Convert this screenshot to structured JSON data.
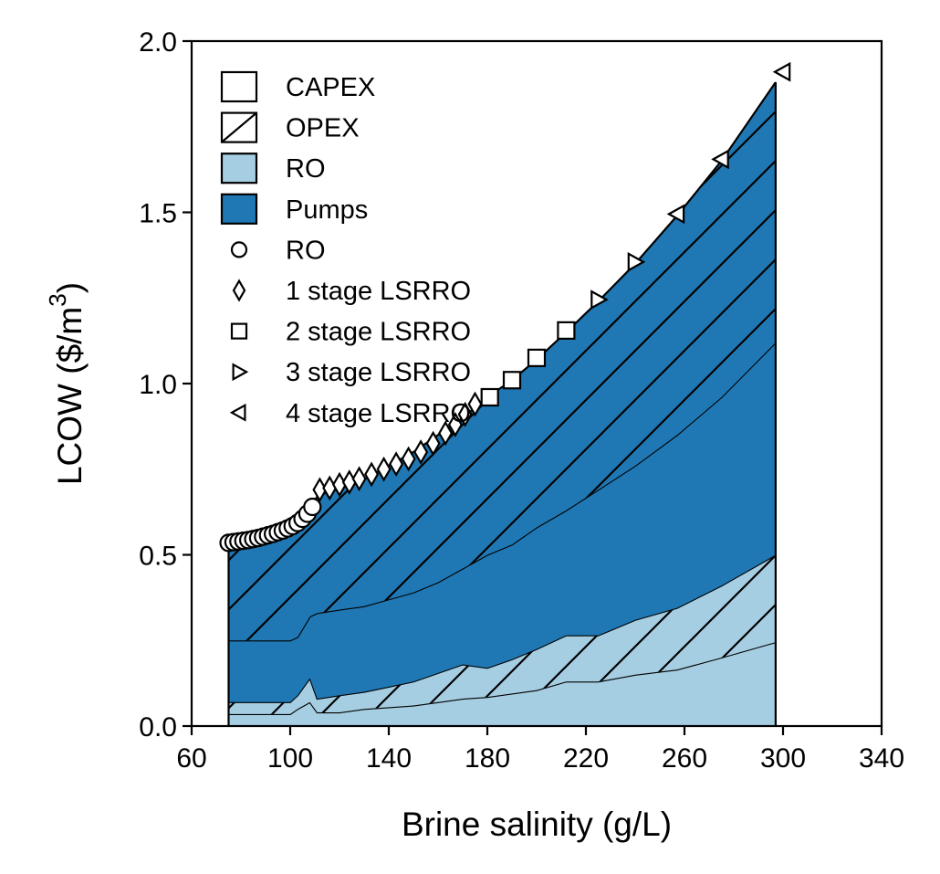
{
  "chart_data": {
    "type": "area",
    "title": "",
    "xlabel": "Brine salinity (g/L)",
    "ylabel_main": "LCOW ($/m",
    "ylabel_sup": "3",
    "ylabel_close": ")",
    "xlim": [
      60,
      340
    ],
    "ylim": [
      0,
      2.0
    ],
    "xticks": [
      60,
      100,
      140,
      180,
      220,
      260,
      300,
      340
    ],
    "yticks": [
      0.0,
      0.5,
      1.0,
      1.5,
      2.0
    ],
    "xtick_labels": [
      "60",
      "100",
      "140",
      "180",
      "220",
      "260",
      "300",
      "340"
    ],
    "ytick_labels": [
      "0.0",
      "0.5",
      "1.0",
      "1.5",
      "2.0"
    ],
    "grid": false,
    "legend_placement": "top-left",
    "colors": {
      "ro": "#a6cee3",
      "pumps": "#1f78b4",
      "edge": "#000000",
      "marker_fill": "#ffffff"
    },
    "boundary_x": [
      75,
      100,
      103,
      108,
      111,
      120,
      130,
      140,
      150,
      160,
      170,
      180,
      190,
      200,
      212,
      225,
      240,
      257,
      275,
      297
    ],
    "layers": [
      {
        "name": "RO CAPEX",
        "component": "RO",
        "hatch": false,
        "values": [
          0.035,
          0.035,
          0.05,
          0.07,
          0.04,
          0.04,
          0.05,
          0.055,
          0.06,
          0.07,
          0.08,
          0.085,
          0.095,
          0.105,
          0.13,
          0.13,
          0.15,
          0.165,
          0.2,
          0.245
        ]
      },
      {
        "name": "RO OPEX",
        "component": "RO",
        "hatch": true,
        "values": [
          0.07,
          0.07,
          0.09,
          0.14,
          0.08,
          0.09,
          0.1,
          0.115,
          0.13,
          0.155,
          0.18,
          0.17,
          0.195,
          0.225,
          0.265,
          0.265,
          0.31,
          0.345,
          0.41,
          0.5
        ]
      },
      {
        "name": "Pumps CAPEX",
        "component": "Pumps",
        "hatch": false,
        "values": [
          0.25,
          0.25,
          0.26,
          0.32,
          0.33,
          0.34,
          0.35,
          0.37,
          0.39,
          0.42,
          0.46,
          0.5,
          0.53,
          0.58,
          0.63,
          0.69,
          0.76,
          0.85,
          0.96,
          1.12
        ]
      },
      {
        "name": "Pumps OPEX",
        "component": "Pumps",
        "hatch": true,
        "values": [
          0.52,
          0.56,
          0.6,
          0.64,
          0.67,
          0.7,
          0.72,
          0.76,
          0.8,
          0.85,
          0.9,
          0.96,
          1.01,
          1.07,
          1.15,
          1.24,
          1.35,
          1.49,
          1.65,
          1.88
        ]
      }
    ],
    "series": [
      {
        "name": "RO",
        "marker": "circle",
        "x": [
          75,
          77,
          79,
          81,
          83,
          85,
          87,
          89,
          91,
          93,
          95,
          97,
          99,
          101,
          103,
          105,
          107,
          109
        ],
        "y": [
          0.535,
          0.537,
          0.539,
          0.541,
          0.543,
          0.546,
          0.549,
          0.553,
          0.557,
          0.561,
          0.566,
          0.571,
          0.577,
          0.584,
          0.593,
          0.605,
          0.62,
          0.64
        ]
      },
      {
        "name": "1 stage LSRRO",
        "marker": "diamond",
        "x": [
          112,
          116,
          120,
          124,
          128,
          133,
          138,
          143,
          148,
          153,
          158,
          163,
          167,
          171,
          175
        ],
        "y": [
          0.69,
          0.695,
          0.705,
          0.712,
          0.722,
          0.735,
          0.75,
          0.765,
          0.78,
          0.8,
          0.825,
          0.855,
          0.88,
          0.91,
          0.94
        ]
      },
      {
        "name": "2 stage LSRRO",
        "marker": "square",
        "x": [
          181,
          190,
          200,
          212
        ],
        "y": [
          0.96,
          1.01,
          1.075,
          1.155
        ]
      },
      {
        "name": "3 stage LSRRO",
        "marker": "triangle-right",
        "x": [
          225,
          240
        ],
        "y": [
          1.245,
          1.355
        ]
      },
      {
        "name": "4 stage LSRRO",
        "marker": "triangle-left",
        "x": [
          257,
          275,
          300
        ],
        "y": [
          1.495,
          1.655,
          1.91
        ]
      }
    ],
    "legend": [
      {
        "label": "CAPEX",
        "kind": "patch",
        "fill": "#ffffff",
        "hatch": false
      },
      {
        "label": "OPEX",
        "kind": "patch",
        "fill": "#ffffff",
        "hatch": true
      },
      {
        "label": "RO",
        "kind": "patch",
        "fill": "#a6cee3",
        "hatch": false
      },
      {
        "label": "Pumps",
        "kind": "patch",
        "fill": "#1f78b4",
        "hatch": false
      },
      {
        "label": "RO",
        "kind": "marker",
        "marker": "circle"
      },
      {
        "label": "1 stage LSRRO",
        "kind": "marker",
        "marker": "diamond"
      },
      {
        "label": "2 stage LSRRO",
        "kind": "marker",
        "marker": "square"
      },
      {
        "label": "3 stage LSRRO",
        "kind": "marker",
        "marker": "triangle-right"
      },
      {
        "label": "4 stage LSRRO",
        "kind": "marker",
        "marker": "triangle-left"
      }
    ]
  }
}
